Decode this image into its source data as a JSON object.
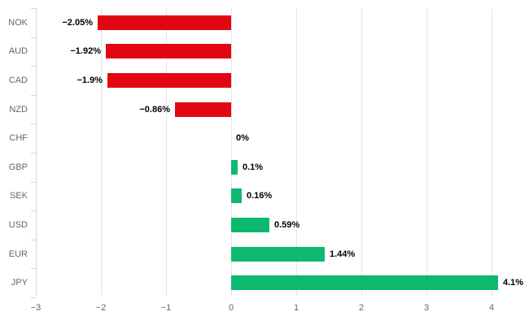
{
  "chart_data": {
    "type": "bar",
    "orientation": "horizontal",
    "title": "",
    "xlabel": "",
    "ylabel": "",
    "categories": [
      "NOK",
      "AUD",
      "CAD",
      "NZD",
      "CHF",
      "GBP",
      "SEK",
      "USD",
      "EUR",
      "JPY"
    ],
    "values": [
      -2.05,
      -1.92,
      -1.9,
      -0.86,
      0,
      0.1,
      0.16,
      0.59,
      1.44,
      4.1
    ],
    "data_labels": [
      "−2.05%",
      "−1.92%",
      "−1.9%",
      "−0.86%",
      "0%",
      "0.1%",
      "0.16%",
      "0.59%",
      "1.44%",
      "4.1%"
    ],
    "x_ticks": [
      -3,
      -2,
      -1,
      0,
      1,
      2,
      3,
      4
    ],
    "x_tick_labels": [
      "−3",
      "−2",
      "−1",
      "0",
      "1",
      "2",
      "3",
      "4"
    ],
    "xlim": [
      -3,
      4.5
    ],
    "grid": true,
    "legend": "none",
    "colors": {
      "negative_bar": "#e20613",
      "positive_bar": "#0db96f",
      "axis_line": "#ccd6eb",
      "grid_line": "#e6e6e6",
      "axis_label_text": "#666666",
      "data_label_text": "#000000",
      "background": "#ffffff"
    }
  }
}
